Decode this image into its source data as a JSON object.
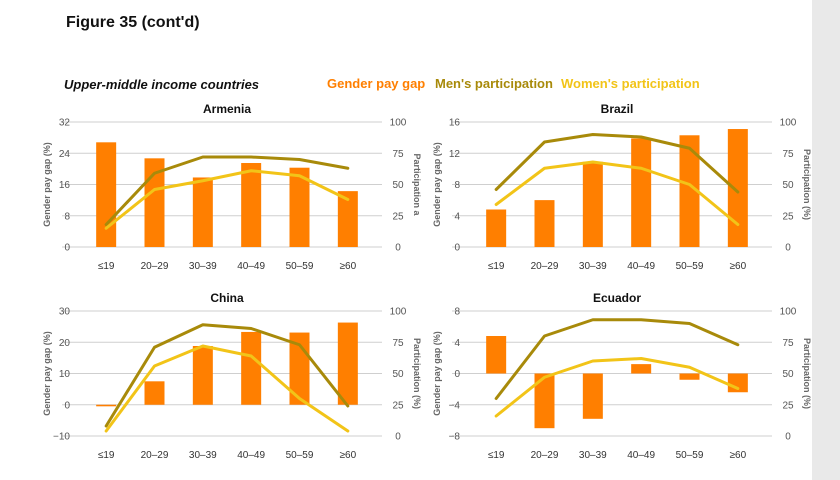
{
  "figure_title": "Figure 35  (cont'd)",
  "section_title": "Upper-middle income countries",
  "legend": [
    {
      "label": "Gender pay gap",
      "color": "#ff7f00"
    },
    {
      "label": "Men's participation",
      "color": "#a88a0a"
    },
    {
      "label": "Women's participation",
      "color": "#f2c418"
    }
  ],
  "colors": {
    "bar": "#ff7f00",
    "men": "#a88a0a",
    "women": "#f2c418",
    "grid": "#cfcfcf"
  },
  "chart_data": [
    {
      "type": "bar+line",
      "title": "Armenia",
      "categories": [
        "≤19",
        "20–29",
        "30–39",
        "40–49",
        "50–59",
        "≥60"
      ],
      "ylabel_left": "Gender pay gap (%)",
      "ylabel_right": "Participation a",
      "left_ticks": [
        "32",
        "24",
        "16",
        "8",
        "0"
      ],
      "right_ticks": [
        "100",
        "75",
        "50",
        "25",
        "0"
      ],
      "ylim_left": [
        0,
        32
      ],
      "ylim_right": [
        0,
        100
      ],
      "pay_gap": [
        26.8,
        22.7,
        17.8,
        21.5,
        20.3,
        14.3
      ],
      "men": [
        18,
        59,
        72,
        72,
        70,
        63
      ],
      "women": [
        15,
        46,
        53,
        61,
        57,
        38
      ]
    },
    {
      "type": "bar+line",
      "title": "Brazil",
      "categories": [
        "≤19",
        "20–29",
        "30–39",
        "40–49",
        "50–59",
        "≥60"
      ],
      "ylabel_left": "Gender pay gap (%)",
      "ylabel_right": "Participation (%)",
      "left_ticks": [
        "16",
        "12",
        "8",
        "4",
        "0"
      ],
      "right_ticks": [
        "100",
        "75",
        "50",
        "25",
        "0"
      ],
      "ylim_left": [
        0,
        16
      ],
      "ylim_right": [
        0,
        100
      ],
      "pay_gap": [
        4.8,
        6.0,
        10.9,
        13.9,
        14.3,
        15.1
      ],
      "men": [
        46,
        84,
        90,
        88,
        79,
        44
      ],
      "women": [
        34,
        63,
        68,
        63,
        50,
        18
      ]
    },
    {
      "type": "bar+line",
      "title": "China",
      "categories": [
        "≤19",
        "20–29",
        "30–39",
        "40–49",
        "50–59",
        "≥60"
      ],
      "ylabel_left": "Gender pay gap (%)",
      "ylabel_right": "Participation (%)",
      "left_ticks": [
        "30",
        "20",
        "10",
        "0",
        "−10"
      ],
      "right_ticks": [
        "100",
        "75",
        "50",
        "25",
        "0"
      ],
      "ylim_left": [
        -10,
        30
      ],
      "ylim_right": [
        0,
        100
      ],
      "pay_gap": [
        -0.5,
        7.5,
        18.8,
        23.3,
        23.1,
        26.3
      ],
      "men": [
        8,
        71,
        89,
        86,
        73,
        24
      ],
      "women": [
        4,
        56,
        72,
        64,
        30,
        4
      ]
    },
    {
      "type": "bar+line",
      "title": "Ecuador",
      "categories": [
        "≤19",
        "20–29",
        "30–39",
        "40–49",
        "50–59",
        "≥60"
      ],
      "ylabel_left": "Gender pay gap (%)",
      "ylabel_right": "Participation (%)",
      "left_ticks": [
        "8",
        "4",
        "0",
        "−4",
        "−8"
      ],
      "right_ticks": [
        "100",
        "75",
        "50",
        "25",
        "0"
      ],
      "ylim_left": [
        -8,
        8
      ],
      "ylim_right": [
        0,
        100
      ],
      "pay_gap": [
        4.8,
        -7.0,
        -5.8,
        1.2,
        -0.8,
        -2.4
      ],
      "men": [
        30,
        80,
        93,
        93,
        90,
        73
      ],
      "women": [
        16,
        47,
        60,
        62,
        55,
        38
      ]
    }
  ]
}
